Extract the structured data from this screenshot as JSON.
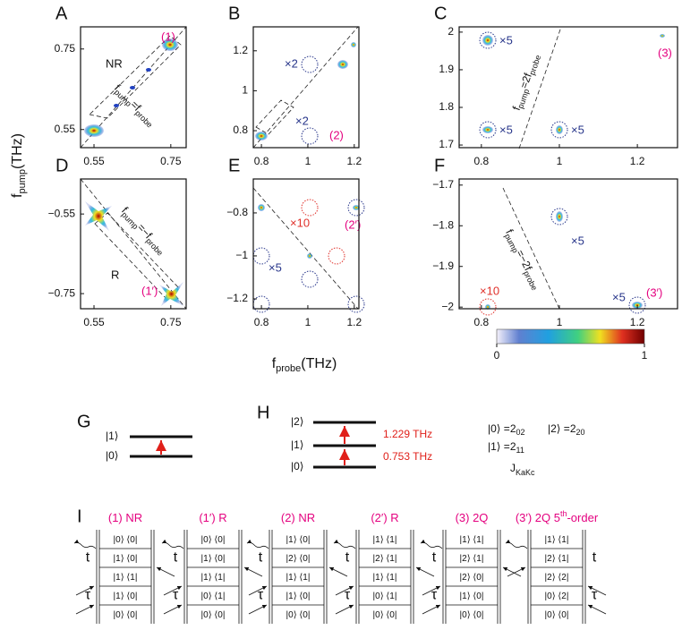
{
  "figure": {
    "y_axis_label": [
      "f",
      "pump",
      "(THz)"
    ],
    "x_axis_label": [
      "f",
      "probe",
      "(THz)"
    ]
  },
  "panels": [
    {
      "label": "A",
      "xlim": [
        0.515,
        0.79
      ],
      "ylim": [
        0.505,
        0.805
      ],
      "xticks": [
        0.55,
        0.75
      ],
      "yticks": [
        0.55,
        0.75
      ],
      "notes": [
        "(1)",
        "NR"
      ],
      "diagonal": [
        "f",
        "pump",
        "=f",
        "probe"
      ]
    },
    {
      "label": "B",
      "xlim": [
        0.765,
        1.22
      ],
      "ylim": [
        0.715,
        1.32
      ],
      "xticks": [
        0.8,
        1,
        1.2
      ],
      "yticks": [
        0.8,
        1,
        1.2
      ],
      "notes": [
        "×2",
        "×2",
        "(2)"
      ]
    },
    {
      "label": "C",
      "xlim": [
        0.743,
        1.303
      ],
      "ylim": [
        1.693,
        2.014
      ],
      "xticks": [
        0.8,
        1,
        1.2
      ],
      "yticks": [
        1.7,
        1.8,
        1.9,
        2
      ],
      "notes": [
        "×5",
        "×5",
        "×5",
        "(3)"
      ],
      "diagonal": [
        "f",
        "pump",
        "=2f",
        "probe"
      ]
    },
    {
      "label": "D",
      "xlim": [
        0.515,
        0.79
      ],
      "ylim": [
        -0.788,
        -0.462
      ],
      "xticks": [
        0.55,
        0.75
      ],
      "yticks": [
        {
          "value": -0.75,
          "label": "−0.75"
        },
        {
          "value": -0.55,
          "label": "−0.55"
        }
      ],
      "notes": [
        "R",
        "(1′)"
      ],
      "diagonal": [
        "f",
        "pump",
        "=−f",
        "probe"
      ]
    },
    {
      "label": "E",
      "xlim": [
        0.765,
        1.22
      ],
      "ylim": [
        -1.246,
        -0.642
      ],
      "xticks": [
        0.8,
        1,
        1.2
      ],
      "yticks": [
        {
          "value": -1.2,
          "label": "−1.2"
        },
        {
          "value": -1,
          "label": "−1"
        },
        {
          "value": -0.8,
          "label": "−0.8"
        }
      ],
      "notes": [
        "×10",
        "(2′)",
        "×5"
      ]
    },
    {
      "label": "F",
      "xlim": [
        0.743,
        1.303
      ],
      "ylim": [
        -2.004,
        -1.685
      ],
      "xticks": [
        0.8,
        1,
        1.2
      ],
      "yticks": [
        {
          "value": -2,
          "label": "−2"
        },
        {
          "value": -1.9,
          "label": "−1.9"
        },
        {
          "value": -1.8,
          "label": "−1.8"
        },
        {
          "value": -1.7,
          "label": "−1.7"
        }
      ],
      "notes": [
        "×5",
        "×10",
        "×5",
        "(3′)"
      ],
      "diagonal": [
        "f",
        "pump",
        "=−2f",
        "probe"
      ]
    }
  ],
  "colorbar": {
    "ticks": [
      0,
      1
    ]
  },
  "levels": {
    "G": {
      "label": "G",
      "states": [
        "|1⟩",
        "|0⟩"
      ]
    },
    "H": {
      "label": "H",
      "states": [
        "|2⟩",
        "|1⟩",
        "|0⟩"
      ],
      "transitions": [
        "1.229 THz",
        "0.753 THz"
      ],
      "assignments": [
        [
          "|0⟩ =2",
          "02"
        ],
        [
          "|2⟩ =2",
          "20"
        ],
        [
          "|1⟩ =2",
          "11"
        ]
      ],
      "notation": [
        "J",
        "KaKc"
      ]
    }
  },
  "pathways": {
    "label": "I",
    "time_labels": [
      "t",
      "τ"
    ],
    "diagrams": [
      {
        "title": [
          "(1) NR"
        ],
        "rows": [
          "|0⟩ ⟨0|",
          "|1⟩ ⟨0|",
          "|1⟩ ⟨1|",
          "|1⟩ ⟨0|",
          "|0⟩ ⟨0|"
        ]
      },
      {
        "title": [
          "(1′) R"
        ],
        "rows": [
          "|0⟩ ⟨0|",
          "|1⟩ ⟨0|",
          "|1⟩ ⟨1|",
          "|0⟩ ⟨1|",
          "|0⟩ ⟨0|"
        ]
      },
      {
        "title": [
          "(2) NR"
        ],
        "rows": [
          "|1⟩ ⟨0|",
          "|2⟩ ⟨0|",
          "|1⟩ ⟨1|",
          "|1⟩ ⟨0|",
          "|0⟩ ⟨0|"
        ]
      },
      {
        "title": [
          "(2′) R"
        ],
        "rows": [
          "|1⟩ ⟨1|",
          "|2⟩ ⟨1|",
          "|1⟩ ⟨1|",
          "|0⟩ ⟨1|",
          "|0⟩ ⟨0|"
        ]
      },
      {
        "title": [
          "(3) 2Q"
        ],
        "rows": [
          "|1⟩ ⟨1|",
          "|2⟩ ⟨1|",
          "|2⟩ ⟨0|",
          "|1⟩ ⟨0|",
          "|0⟩ ⟨0|"
        ]
      },
      {
        "title": [
          "(3′) 2Q 5",
          "th",
          "-order"
        ],
        "rows": [
          "|1⟩ ⟨1|",
          "|2⟩ ⟨1|",
          "|2⟩ ⟨2|",
          "|0⟩ ⟨2|",
          "|0⟩ ⟨0|"
        ]
      }
    ]
  }
}
